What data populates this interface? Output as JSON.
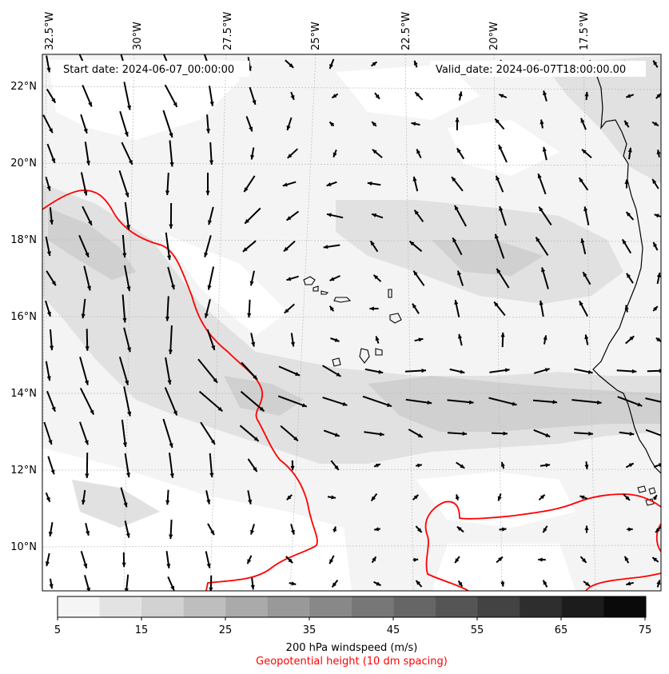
{
  "header": {
    "start_date": "Start date: 2024-06-07_00:00:00",
    "valid_date": "Valid_date: 2024-06-07T18:00:00.00"
  },
  "axes": {
    "lon_labels": [
      "32.5°W",
      "30°W",
      "27.5°W",
      "25°W",
      "22.5°W",
      "20°W",
      "17.5°W"
    ],
    "lat_labels": [
      "22°N",
      "20°N",
      "18°N",
      "16°N",
      "14°N",
      "12°N",
      "10°N"
    ]
  },
  "colorbar": {
    "ticks": [
      "5",
      "15",
      "25",
      "35",
      "45",
      "55",
      "65",
      "75"
    ],
    "label": "200 hPa windspeed (m/s)",
    "sublabel": "Geopotential height (10 dm spacing)",
    "colors": [
      "#f5f5f5",
      "#e3e3e3",
      "#d2d2d2",
      "#bebebe",
      "#aaaaaa",
      "#999999",
      "#888888",
      "#777777",
      "#666666",
      "#555555",
      "#434343",
      "#2e2e2e",
      "#1c1c1c",
      "#0a0a0a"
    ],
    "height_contour_color": "#ff0000"
  }
}
